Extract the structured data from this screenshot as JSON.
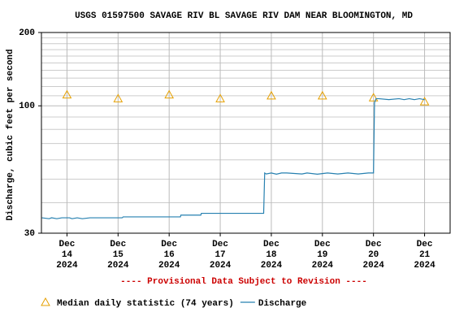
{
  "chart_data": {
    "type": "line",
    "title": "USGS 01597500 SAVAGE RIV BL SAVAGE RIV DAM NEAR BLOOMINGTON, MD",
    "ylabel": "Discharge, cubic feet per second",
    "annotation": "---- Provisional Data Subject to Revision ----",
    "log_scale": true,
    "grid": true,
    "ylim": [
      30,
      200
    ],
    "yticks": [
      30,
      100,
      200
    ],
    "y_minor_gridlines": [
      40,
      50,
      60,
      70,
      80,
      90,
      110,
      120,
      130,
      140,
      150,
      160,
      170,
      180,
      190
    ],
    "xlim": [
      -0.5,
      7.5
    ],
    "xticks": [
      {
        "value": 0,
        "label": "Dec\n14\n2024"
      },
      {
        "value": 1,
        "label": "Dec\n15\n2024"
      },
      {
        "value": 2,
        "label": "Dec\n16\n2024"
      },
      {
        "value": 3,
        "label": "Dec\n17\n2024"
      },
      {
        "value": 4,
        "label": "Dec\n18\n2024"
      },
      {
        "value": 5,
        "label": "Dec\n19\n2024"
      },
      {
        "value": 6,
        "label": "Dec\n20\n2024"
      },
      {
        "value": 7,
        "label": "Dec\n21\n2024"
      }
    ],
    "series": [
      {
        "name": "Median daily statistic (74 years)",
        "color": "#e6a000",
        "marker": "triangle",
        "x": [
          0,
          1,
          2,
          3,
          4,
          5,
          6,
          7
        ],
        "values": [
          111,
          107,
          111,
          107,
          110,
          110,
          108,
          104
        ]
      },
      {
        "name": "Discharge",
        "color": "#2680b0",
        "marker": "line",
        "x": [
          -0.49,
          -0.35,
          -0.3,
          -0.2,
          -0.1,
          0.05,
          0.1,
          0.2,
          0.3,
          0.45,
          0.6,
          0.8,
          1.0,
          1.08,
          1.1,
          1.5,
          2.0,
          2.22,
          2.23,
          2.6,
          2.62,
          2.63,
          3.0,
          3.5,
          3.85,
          3.87,
          3.9,
          4.0,
          4.1,
          4.2,
          4.3,
          4.6,
          4.7,
          4.9,
          5.1,
          5.3,
          5.5,
          5.7,
          5.9,
          6.0,
          6.02,
          6.05,
          6.1,
          6.3,
          6.5,
          6.6,
          6.7,
          6.8,
          6.9,
          7.0
        ],
        "values": [
          34.7,
          34.4,
          34.7,
          34.4,
          34.7,
          34.7,
          34.4,
          34.7,
          34.4,
          34.7,
          34.7,
          34.7,
          34.7,
          34.7,
          35.0,
          35.0,
          35.0,
          35.0,
          35.6,
          35.6,
          35.6,
          36.2,
          36.2,
          36.2,
          36.2,
          53,
          52.5,
          53,
          52.4,
          53,
          53,
          52.5,
          53,
          52.4,
          53,
          52.5,
          53,
          52.5,
          53,
          53,
          103,
          107,
          107,
          106,
          107,
          106,
          107,
          106,
          107,
          106
        ]
      }
    ]
  }
}
